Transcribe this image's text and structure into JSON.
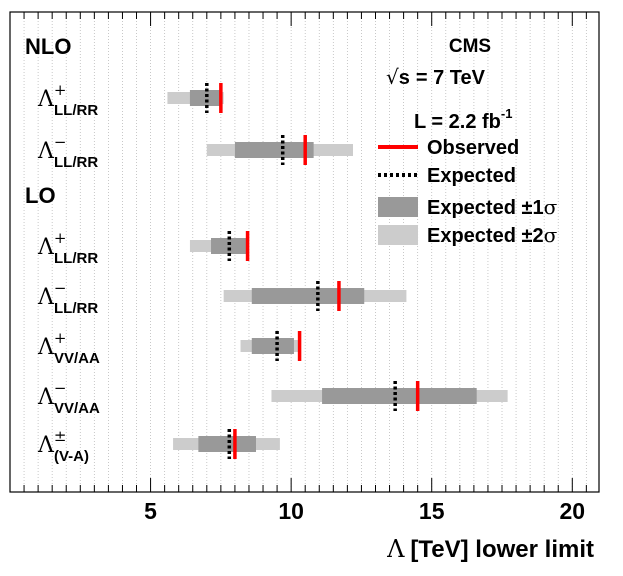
{
  "chart_data": {
    "type": "limit-bars",
    "xlabel_symbol": "Λ",
    "xlabel_text": "[TeV] lower limit",
    "xlim": [
      0,
      20.95
    ],
    "xticks": [
      5,
      10,
      15,
      20
    ],
    "minor_tick_step": 0.5,
    "grid": true,
    "sections": [
      {
        "label": "NLO"
      },
      {
        "label": "LO"
      }
    ],
    "rows": [
      {
        "section": "NLO",
        "symbol": "Λ",
        "sup": "+",
        "sub": "LL/RR",
        "observed": 7.5,
        "expected": 7.0,
        "sigma1": [
          6.4,
          7.45
        ],
        "sigma2": [
          5.6,
          7.6
        ]
      },
      {
        "section": "NLO",
        "symbol": "Λ",
        "sup": "−",
        "sub": "LL/RR",
        "observed": 10.5,
        "expected": 9.7,
        "sigma1": [
          8.0,
          10.8
        ],
        "sigma2": [
          7.0,
          12.2
        ]
      },
      {
        "section": "LO",
        "symbol": "Λ",
        "sup": "+",
        "sub": "LL/RR",
        "observed": 8.45,
        "expected": 7.8,
        "sigma1": [
          7.15,
          8.4
        ],
        "sigma2": [
          6.4,
          8.5
        ]
      },
      {
        "section": "LO",
        "symbol": "Λ",
        "sup": "−",
        "sub": "LL/RR",
        "observed": 11.7,
        "expected": 10.95,
        "sigma1": [
          8.6,
          12.6
        ],
        "sigma2": [
          7.6,
          14.1
        ]
      },
      {
        "section": "LO",
        "symbol": "Λ",
        "sup": "+",
        "sub": "VV/AA",
        "observed": 10.3,
        "expected": 9.5,
        "sigma1": [
          8.6,
          10.1
        ],
        "sigma2": [
          8.2,
          10.3
        ]
      },
      {
        "section": "LO",
        "symbol": "Λ",
        "sup": "−",
        "sub": "VV/AA",
        "observed": 14.5,
        "expected": 13.7,
        "sigma1": [
          11.1,
          16.6
        ],
        "sigma2": [
          9.3,
          17.7
        ]
      },
      {
        "section": "LO",
        "symbol": "Λ",
        "sup": "±",
        "sub": "(V-A)",
        "observed": 8.0,
        "expected": 7.8,
        "sigma1": [
          6.7,
          8.75
        ],
        "sigma2": [
          5.8,
          9.6
        ]
      }
    ],
    "info": {
      "experiment": "CMS",
      "energy_root": "√",
      "energy_var": "s",
      "energy_value": "= 7 TeV",
      "lumi_prefix": "L = 2.2 fb",
      "lumi_exp": "-1"
    },
    "legend": [
      {
        "key": "observed",
        "label": "Observed",
        "style": "line-solid"
      },
      {
        "key": "expected",
        "label": "Expected",
        "style": "line-dotted"
      },
      {
        "key": "sigma1",
        "label": "Expected ±1",
        "sigma": "σ",
        "style": "band"
      },
      {
        "key": "sigma2",
        "label": "Expected ±2",
        "sigma": "σ",
        "style": "band"
      }
    ],
    "colors": {
      "observed": "#ff0000",
      "expected": "#000000",
      "sigma1": "#999999",
      "sigma2": "#cccccc",
      "grid": "#bbbbbb",
      "frame": "#000000"
    }
  }
}
